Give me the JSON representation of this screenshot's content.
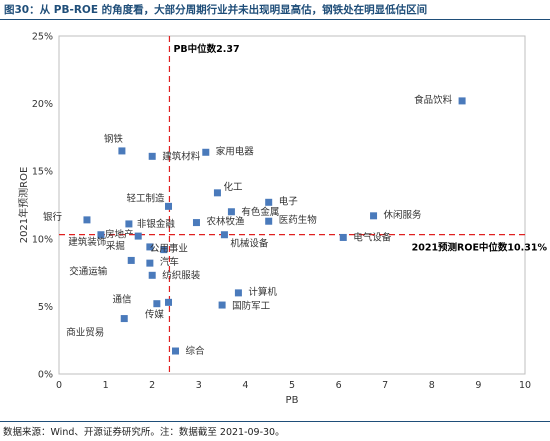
{
  "figure_title": "图30：从 PB-ROE 的角度看，大部分周期行业并未出现明显高估，钢铁处在明显低估区间",
  "footer": "数据来源：Wind、开源证券研究所。注：数据截至 2021-09-30。",
  "colors": {
    "marker": "#4a7abb",
    "median_line": "#e02020",
    "title": "#1f4e79"
  },
  "chart_data": {
    "type": "scatter",
    "xlabel": "PB",
    "ylabel": "2021年预测ROE",
    "xlim": [
      0,
      10
    ],
    "ylim": [
      0,
      25
    ],
    "x_ticks": [
      "0",
      "1",
      "2",
      "3",
      "4",
      "5",
      "6",
      "7",
      "8",
      "9",
      "10"
    ],
    "y_ticks": [
      "0%",
      "5%",
      "10%",
      "15%",
      "20%",
      "25%"
    ],
    "grid": false,
    "pb_median": {
      "value": 2.37,
      "label": "PB中位数2.37"
    },
    "roe_median": {
      "value": 10.31,
      "label": "2021预测ROE中位数10.31%"
    },
    "points": [
      {
        "name": "食品饮料",
        "x": 8.65,
        "y": 20.2
      },
      {
        "name": "钢铁",
        "x": 1.35,
        "y": 16.5
      },
      {
        "name": "建筑材料",
        "x": 2.0,
        "y": 16.1
      },
      {
        "name": "家用电器",
        "x": 3.15,
        "y": 16.4
      },
      {
        "name": "化工",
        "x": 3.4,
        "y": 13.4
      },
      {
        "name": "轻工制造",
        "x": 2.35,
        "y": 12.4
      },
      {
        "name": "电子",
        "x": 4.5,
        "y": 12.7
      },
      {
        "name": "有色金属",
        "x": 3.7,
        "y": 12.0
      },
      {
        "name": "休闲服务",
        "x": 6.75,
        "y": 11.7
      },
      {
        "name": "银行",
        "x": 0.6,
        "y": 11.4
      },
      {
        "name": "非银金融",
        "x": 1.5,
        "y": 11.1
      },
      {
        "name": "农林牧渔",
        "x": 2.95,
        "y": 11.2
      },
      {
        "name": "医药生物",
        "x": 4.5,
        "y": 11.3
      },
      {
        "name": "房地产",
        "x": 0.9,
        "y": 10.3
      },
      {
        "name": "建筑装饰",
        "x": 1.7,
        "y": 10.2
      },
      {
        "name": "机械设备",
        "x": 3.55,
        "y": 10.3
      },
      {
        "name": "电气设备",
        "x": 6.1,
        "y": 10.1
      },
      {
        "name": "采掘",
        "x": 1.95,
        "y": 9.4
      },
      {
        "name": "公用事业",
        "x": 2.25,
        "y": 9.2
      },
      {
        "name": "交通运输",
        "x": 1.55,
        "y": 8.4
      },
      {
        "name": "汽车",
        "x": 1.95,
        "y": 8.2
      },
      {
        "name": "纺织服装",
        "x": 2.0,
        "y": 7.3
      },
      {
        "name": "计算机",
        "x": 3.85,
        "y": 6.0
      },
      {
        "name": "国防军工",
        "x": 3.5,
        "y": 5.1
      },
      {
        "name": "传媒",
        "x": 2.1,
        "y": 5.2
      },
      {
        "name": "通信",
        "x": 2.35,
        "y": 5.3
      },
      {
        "name": "商业贸易",
        "x": 1.4,
        "y": 4.1
      },
      {
        "name": "综合",
        "x": 2.5,
        "y": 1.7
      }
    ]
  }
}
